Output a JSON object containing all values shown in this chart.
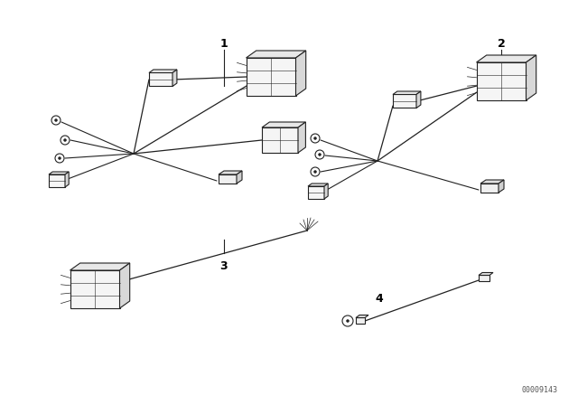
{
  "background_color": "#ffffff",
  "line_color": "#222222",
  "label_color": "#000000",
  "watermark": "00009143",
  "fig_w": 6.4,
  "fig_h": 4.48,
  "dpi": 100
}
